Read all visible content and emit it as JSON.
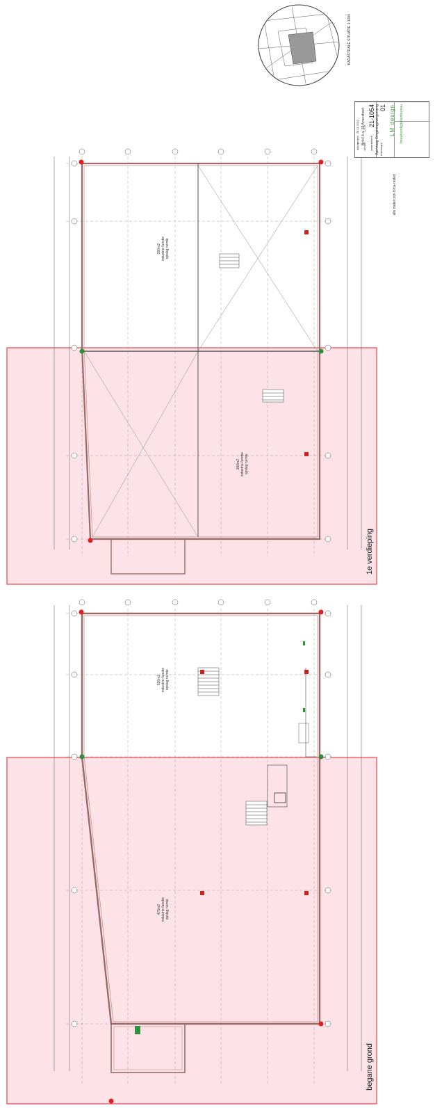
{
  "drawing": {
    "ground_floor_label": "begane grond",
    "first_floor_label": "1e verdieping",
    "cadastral_label": "KADASTRALE SITUATIE 1:1000",
    "note": "alle maten zijn circa-maten",
    "rooms": {
      "gf_left": {
        "area": "475m2",
        "line1": "industrie-functie",
        "line2": "opslag ruimte"
      },
      "gf_right": {
        "area": "526m2",
        "line1": "industrie-functie",
        "line2": "opslag ruimte"
      },
      "ff_left": {
        "area": "260m2",
        "line1": "industrie-functie",
        "line2": "opslag ruimte"
      },
      "ff_right": {
        "area": "260m2",
        "line1": "industrie-functie",
        "line2": "opslag ruimte"
      }
    }
  },
  "title_block": {
    "project_caption": "project",
    "project": "Birkt l.h.v. 23 Amersfoort",
    "subject_caption": "betreft",
    "subject": "Aanvraag Omgevingsvergunning",
    "date_caption": "datum",
    "date": "28-11-2022",
    "scale_caption": "schaal",
    "scale": "1:100",
    "number_caption": "werknr",
    "project_number": "21-1054",
    "sheet_caption": "tekeningnr",
    "sheet": "01",
    "logo_text": "LM design",
    "logo_subtitle": "bouwkundig tekenbureau"
  },
  "colors": {
    "highlight_fill": "#fde3e7",
    "highlight_border": "#e8424d",
    "wall": "#9a6a6a",
    "marker_red": "#e02020",
    "marker_green": "#2f8f3a",
    "logo_green": "#3a9a3a"
  }
}
